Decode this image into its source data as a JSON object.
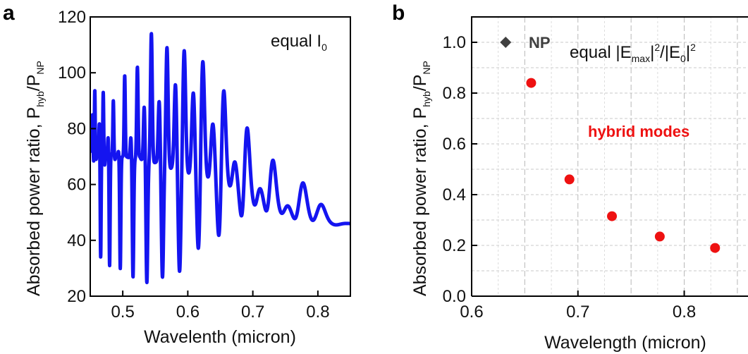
{
  "chart_data": [
    {
      "panel": "a",
      "type": "line",
      "xlabel": "Wavelenth (micron)",
      "ylabel_main": "Absorbed power ratio, P",
      "ylabel_sub1": "hyb",
      "ylabel_mid": "/P",
      "ylabel_sub2": "NP",
      "annotation_main": "equal I",
      "annotation_sub": "0",
      "xlim": [
        0.45,
        0.85
      ],
      "ylim": [
        20,
        120
      ],
      "xticks": [
        "0.5",
        "0.6",
        "0.7",
        "0.8"
      ],
      "yticks": [
        "20",
        "40",
        "60",
        "80",
        "100",
        "120"
      ],
      "color": "#1414f0",
      "baseline": [
        [
          0.45,
          72
        ],
        [
          0.55,
          68
        ],
        [
          0.65,
          63
        ],
        [
          0.7,
          57
        ],
        [
          0.75,
          51
        ],
        [
          0.8,
          47
        ],
        [
          0.85,
          46
        ]
      ],
      "peaks": [
        {
          "x": 0.4535,
          "y": 85,
          "min": 68
        },
        {
          "x": 0.457,
          "y": 94,
          "min": 69
        },
        {
          "x": 0.464,
          "y": 82,
          "min": 34
        },
        {
          "x": 0.47,
          "y": 93,
          "min": 67
        },
        {
          "x": 0.4775,
          "y": 77,
          "min": 31
        },
        {
          "x": 0.4855,
          "y": 90,
          "min": 69
        },
        {
          "x": 0.4935,
          "y": 72,
          "min": 30
        },
        {
          "x": 0.503,
          "y": 99,
          "min": 70
        },
        {
          "x": 0.5125,
          "y": 77,
          "min": 27
        },
        {
          "x": 0.5225,
          "y": 102,
          "min": 70
        },
        {
          "x": 0.533,
          "y": 88,
          "min": 25
        },
        {
          "x": 0.544,
          "y": 114,
          "min": 68
        },
        {
          "x": 0.556,
          "y": 90,
          "min": 27
        },
        {
          "x": 0.568,
          "y": 109,
          "min": 66
        },
        {
          "x": 0.581,
          "y": 96,
          "min": 29
        },
        {
          "x": 0.5945,
          "y": 108,
          "min": 64
        },
        {
          "x": 0.6085,
          "y": 93,
          "min": 36
        },
        {
          "x": 0.623,
          "y": 105,
          "min": 62
        },
        {
          "x": 0.6385,
          "y": 82,
          "min": 39
        },
        {
          "x": 0.655,
          "y": 96,
          "min": 59
        },
        {
          "x": 0.672,
          "y": 69,
          "min": 45
        },
        {
          "x": 0.6905,
          "y": 84,
          "min": 52
        },
        {
          "x": 0.7095,
          "y": 61,
          "min": 44
        },
        {
          "x": 0.7295,
          "y": 75,
          "min": 49
        },
        {
          "x": 0.751,
          "y": 55,
          "min": 43
        },
        {
          "x": 0.7755,
          "y": 65,
          "min": 45
        },
        {
          "x": 0.803,
          "y": 55,
          "min": 46
        }
      ]
    },
    {
      "panel": "b",
      "type": "scatter",
      "xlabel": "Wavelength (micron)",
      "ylabel_main": "Absorbed power ratio, P",
      "ylabel_sub1": "hyb",
      "ylabel_mid": "/P",
      "ylabel_sub2": "NP",
      "xlim": [
        0.6,
        0.86
      ],
      "ylim": [
        0.0,
        1.1
      ],
      "xticks": [
        "0.6",
        "0.7",
        "0.8"
      ],
      "yticks": [
        "0.0",
        "0.2",
        "0.4",
        "0.6",
        "0.8",
        "1.0"
      ],
      "grid": true,
      "series": [
        {
          "name": "NP",
          "marker": "diamond",
          "color": "#404040",
          "points": [
            {
              "x": 0.632,
              "y": 1.0
            }
          ]
        },
        {
          "name": "hybrid modes",
          "marker": "circle",
          "color": "#ee1111",
          "points": [
            {
              "x": 0.656,
              "y": 0.84
            },
            {
              "x": 0.692,
              "y": 0.46
            },
            {
              "x": 0.732,
              "y": 0.315
            },
            {
              "x": 0.777,
              "y": 0.235
            },
            {
              "x": 0.829,
              "y": 0.19
            }
          ]
        }
      ],
      "annotation": {
        "prefix": "equal |E",
        "sub1": "max",
        "mid": "|",
        "sup1": "2",
        "slash": "/|E",
        "sub2": "0",
        "end": "|",
        "sup2": "2"
      }
    }
  ],
  "labels": {
    "panel_a": "a",
    "panel_b": "b"
  }
}
